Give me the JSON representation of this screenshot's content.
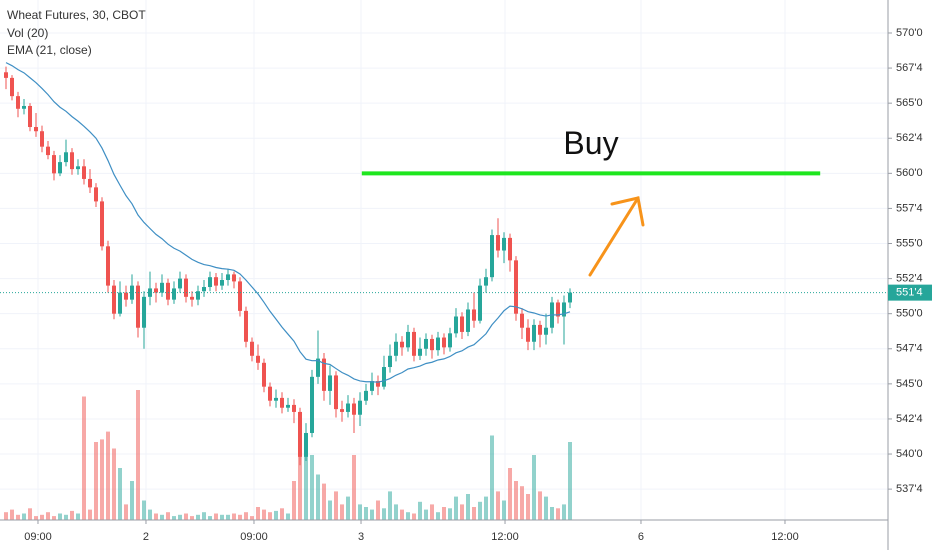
{
  "chart_data": {
    "type": "candlestick",
    "title": "Wheat Futures, 30, CBOT",
    "indicators": [
      "Vol (20)",
      "EMA (21, close)"
    ],
    "colors": {
      "up": "#26a69a",
      "down": "#ef5350",
      "ema": "#3f8fc4",
      "buy": "#1ee61e"
    },
    "xlim": [
      -1,
      147
    ],
    "xticks": [
      {
        "value": 5.33,
        "label": "09:00"
      },
      {
        "value": 23.33,
        "label": "2"
      },
      {
        "value": 41.33,
        "label": "09:00"
      },
      {
        "value": 59.17,
        "label": "3"
      },
      {
        "value": 83.17,
        "label": "12:00"
      },
      {
        "value": 105.83,
        "label": "6"
      },
      {
        "value": 129.83,
        "label": "12:00"
      }
    ],
    "ylim": [
      535.3,
      572.35
    ],
    "yticks": [
      {
        "value": 570,
        "label": "570'0"
      },
      {
        "value": 567.5,
        "label": "567'4"
      },
      {
        "value": 565,
        "label": "565'0"
      },
      {
        "value": 562.5,
        "label": "562'4"
      },
      {
        "value": 560,
        "label": "560'0"
      },
      {
        "value": 557.5,
        "label": "557'4"
      },
      {
        "value": 555,
        "label": "555'0"
      },
      {
        "value": 552.5,
        "label": "552'4"
      },
      {
        "value": 550,
        "label": "550'0"
      },
      {
        "value": 547.5,
        "label": "547'4"
      },
      {
        "value": 545,
        "label": "545'0"
      },
      {
        "value": 542.5,
        "label": "542'4"
      },
      {
        "value": 540,
        "label": "540'0"
      },
      {
        "value": 537.5,
        "label": "537'4"
      }
    ],
    "y2lim": [
      0,
      400
    ],
    "last_price": {
      "value": 551.5,
      "label": "551'4"
    },
    "buy_line": {
      "label": "Buy",
      "value": 560,
      "x": [
        59.3,
        135.7
      ]
    },
    "open": [
      567.2,
      566.8,
      565.5,
      564.6,
      564.8,
      563.3,
      563.0,
      561.9,
      561.3,
      560.0,
      560.8,
      561.5,
      560.3,
      560.5,
      559.6,
      559.0,
      558.0,
      554.8,
      552.0,
      550.0,
      551.5,
      551.0,
      552.0,
      549.0,
      551.2,
      551.8,
      551.5,
      552.2,
      551.0,
      551.8,
      552.5,
      551.2,
      551.0,
      551.6,
      551.9,
      552.6,
      552.0,
      552.4,
      552.8,
      552.3,
      550.2,
      548.0,
      547.0,
      546.5,
      544.8,
      543.8,
      544.0,
      543.3,
      543.5,
      543.0,
      539.8,
      541.5,
      545.5,
      546.8,
      544.5,
      545.6,
      543.2,
      543.0,
      543.6,
      542.8,
      543.8,
      544.5,
      545.2,
      544.8,
      546.2,
      547.0,
      548.0,
      547.6,
      548.7,
      547.0,
      547.5,
      548.2,
      547.4,
      548.3,
      547.6,
      548.6,
      549.8,
      548.7,
      550.3,
      549.5,
      552.0,
      552.6,
      555.6,
      554.5,
      555.4,
      553.8,
      550.0,
      549.0,
      548.0,
      549.2,
      548.5,
      549.0,
      550.8,
      549.8,
      550.8
    ],
    "high": [
      567.6,
      567.0,
      565.8,
      565.3,
      565.0,
      564.3,
      563.4,
      562.3,
      561.6,
      561.3,
      562.4,
      561.8,
      561.0,
      561.0,
      560.3,
      559.3,
      558.3,
      555.2,
      552.4,
      552.3,
      552.0,
      552.8,
      552.3,
      551.6,
      553.0,
      552.2,
      552.8,
      552.5,
      552.3,
      553.0,
      552.8,
      551.6,
      552.0,
      552.4,
      553.0,
      552.9,
      552.9,
      553.2,
      553.0,
      552.6,
      550.5,
      548.3,
      547.8,
      546.8,
      545.1,
      544.6,
      544.4,
      544.0,
      543.9,
      543.3,
      542.2,
      546.0,
      548.8,
      547.2,
      546.3,
      545.9,
      543.8,
      544.2,
      544.0,
      544.4,
      545.0,
      545.8,
      545.6,
      547.0,
      547.8,
      548.6,
      548.4,
      549.2,
      549.0,
      548.3,
      548.6,
      548.5,
      548.7,
      548.6,
      549.0,
      550.4,
      550.1,
      550.8,
      551.5,
      552.5,
      553.2,
      556.0,
      556.8,
      555.8,
      555.7,
      554.1,
      550.4,
      549.6,
      549.6,
      549.5,
      550.0,
      551.2,
      551.0,
      551.3,
      551.8
    ],
    "low": [
      566.0,
      565.2,
      564.0,
      564.2,
      563.0,
      562.6,
      561.5,
      561.0,
      559.5,
      559.8,
      560.5,
      559.9,
      559.9,
      559.2,
      558.6,
      557.6,
      554.5,
      551.5,
      549.6,
      549.8,
      550.5,
      550.7,
      548.3,
      547.5,
      550.6,
      550.8,
      551.2,
      550.6,
      550.7,
      551.5,
      550.8,
      550.5,
      550.6,
      551.2,
      551.6,
      551.6,
      551.7,
      552.0,
      551.8,
      549.8,
      547.6,
      546.6,
      546.0,
      544.4,
      543.4,
      543.3,
      542.9,
      543.0,
      542.2,
      539.2,
      539.5,
      541.2,
      545.0,
      543.8,
      543.5,
      542.6,
      542.3,
      542.6,
      541.5,
      542.0,
      543.5,
      544.2,
      544.2,
      544.6,
      545.8,
      546.6,
      547.0,
      547.3,
      546.6,
      546.7,
      547.0,
      546.8,
      547.0,
      547.1,
      547.3,
      548.3,
      548.2,
      548.4,
      549.0,
      549.3,
      551.5,
      552.3,
      554.0,
      553.6,
      553.0,
      549.5,
      548.2,
      547.4,
      547.4,
      547.6,
      547.8,
      548.6,
      549.3,
      547.8,
      550.4
    ],
    "close": [
      566.8,
      565.5,
      564.6,
      564.8,
      563.3,
      563.0,
      561.9,
      561.3,
      560.0,
      560.8,
      561.5,
      560.3,
      560.5,
      559.6,
      559.0,
      558.0,
      554.8,
      552.0,
      550.0,
      551.5,
      551.0,
      552.0,
      549.0,
      551.2,
      551.8,
      551.5,
      552.2,
      551.0,
      551.8,
      552.5,
      551.2,
      551.0,
      551.6,
      551.9,
      552.6,
      552.0,
      552.4,
      552.8,
      552.3,
      550.2,
      548.0,
      547.0,
      546.5,
      544.8,
      543.8,
      544.0,
      543.3,
      543.5,
      543.0,
      539.8,
      541.5,
      545.5,
      546.8,
      544.5,
      545.6,
      543.2,
      543.0,
      543.6,
      542.8,
      543.8,
      544.5,
      545.2,
      544.8,
      546.2,
      547.0,
      548.0,
      547.6,
      548.7,
      547.0,
      547.5,
      548.2,
      547.4,
      548.3,
      547.6,
      548.6,
      549.8,
      548.7,
      550.3,
      549.5,
      552.0,
      552.6,
      555.6,
      554.5,
      555.4,
      553.8,
      550.0,
      549.0,
      548.0,
      549.2,
      548.5,
      549.0,
      550.8,
      549.8,
      550.8,
      551.5
    ],
    "volume": [
      6,
      8,
      4,
      5,
      9,
      3,
      4,
      6,
      3,
      5,
      4,
      7,
      5,
      95,
      8,
      60,
      62,
      68,
      55,
      40,
      12,
      30,
      100,
      15,
      8,
      5,
      4,
      6,
      3,
      4,
      5,
      3,
      4,
      6,
      3,
      5,
      4,
      4,
      5,
      4,
      6,
      3,
      10,
      8,
      6,
      7,
      9,
      5,
      30,
      70,
      62,
      50,
      35,
      28,
      15,
      22,
      12,
      18,
      50,
      12,
      10,
      8,
      15,
      9,
      22,
      12,
      8,
      6,
      5,
      14,
      8,
      12,
      6,
      10,
      9,
      18,
      12,
      20,
      10,
      14,
      18,
      65,
      22,
      15,
      40,
      30,
      26,
      20,
      50,
      22,
      18,
      10,
      9,
      12,
      60
    ],
    "ema": [
      567.89,
      567.67,
      567.39,
      567.16,
      566.81,
      566.46,
      566.05,
      565.61,
      565.1,
      564.71,
      564.42,
      564.04,
      563.72,
      563.35,
      562.95,
      562.5,
      561.8,
      560.91,
      559.92,
      559.15,
      558.41,
      557.83,
      557.03,
      556.5,
      556.07,
      555.65,
      555.34,
      554.95,
      554.66,
      554.46,
      554.16,
      553.87,
      553.66,
      553.5,
      553.42,
      553.29,
      553.21,
      553.17,
      553.09,
      552.83,
      552.39,
      551.9,
      551.41,
      550.81,
      550.17,
      549.61,
      549.04,
      548.54,
      548.04,
      547.29,
      546.76,
      546.65,
      546.66,
      546.46,
      546.38,
      546.09,
      545.81,
      545.61,
      545.35,
      545.21,
      545.15,
      545.15,
      545.12,
      545.22,
      545.38,
      545.62,
      545.8,
      546.06,
      546.15,
      546.27,
      546.45,
      546.54,
      546.7,
      546.78,
      546.95,
      547.21,
      547.35,
      547.62,
      547.79,
      548.17,
      548.57,
      549.21,
      549.69,
      550.21,
      550.54,
      550.49,
      550.35,
      550.14,
      550.05,
      549.91,
      549.83,
      549.92,
      549.91,
      549.99,
      550.13
    ]
  }
}
